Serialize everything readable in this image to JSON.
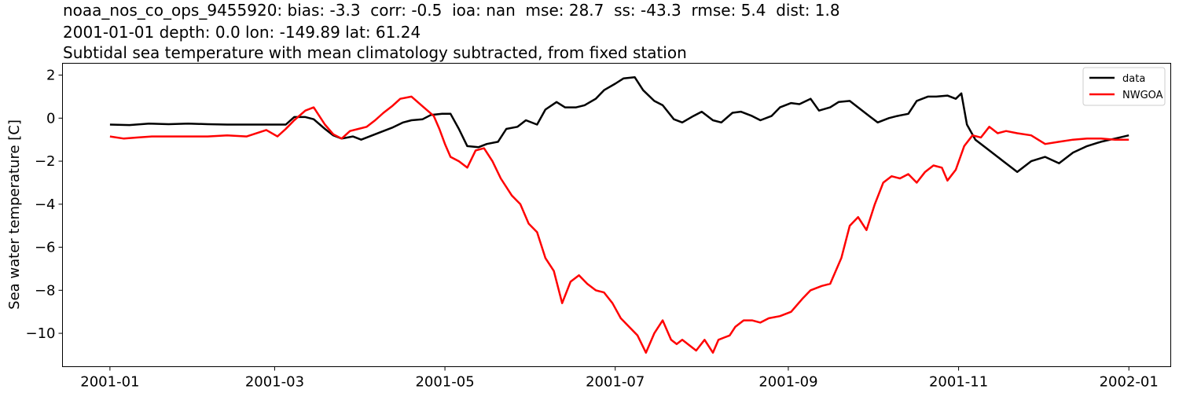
{
  "chart_data": {
    "type": "line",
    "title": [
      "noaa_nos_co_ops_9455920: bias: -3.3  corr: -0.5  ioa: nan  mse: 28.7  ss: -43.3  rmse: 5.4  dist: 1.8",
      "2001-01-01 depth: 0.0 lon: -149.89 lat: 61.24",
      "Subtidal sea temperature with mean climatology subtracted, from fixed station"
    ],
    "xlabel": "",
    "ylabel": "Sea water temperature [C]",
    "ylim": [
      -11.55,
      2.55
    ],
    "xlim_days": [
      -17,
      380
    ],
    "x_ticks": [
      {
        "label": "2001-01",
        "day": 0
      },
      {
        "label": "2001-03",
        "day": 59
      },
      {
        "label": "2001-05",
        "day": 120
      },
      {
        "label": "2001-07",
        "day": 181
      },
      {
        "label": "2001-09",
        "day": 243
      },
      {
        "label": "2001-11",
        "day": 304
      },
      {
        "label": "2002-01",
        "day": 365
      }
    ],
    "y_ticks": [
      {
        "label": "2",
        "value": 2
      },
      {
        "label": "0",
        "value": 0
      },
      {
        "label": "−2",
        "value": -2
      },
      {
        "label": "−4",
        "value": -4
      },
      {
        "label": "−6",
        "value": -6
      },
      {
        "label": "−8",
        "value": -8
      },
      {
        "label": "−10",
        "value": -10
      }
    ],
    "grid": false,
    "legend_position": "upper right",
    "series": [
      {
        "name": "data",
        "color": "#000000",
        "x_day": [
          0,
          7,
          14,
          21,
          28,
          35,
          42,
          49,
          56,
          63,
          66,
          70,
          73,
          77,
          80,
          83,
          87,
          90,
          94,
          98,
          101,
          105,
          108,
          112,
          115,
          119,
          122,
          125,
          128,
          132,
          135,
          139,
          142,
          146,
          149,
          153,
          156,
          160,
          163,
          167,
          170,
          174,
          177,
          181,
          184,
          188,
          191,
          195,
          198,
          202,
          205,
          209,
          212,
          216,
          219,
          223,
          226,
          230,
          233,
          237,
          240,
          244,
          247,
          251,
          254,
          258,
          261,
          265,
          268,
          272,
          275,
          279,
          282,
          286,
          289,
          293,
          296,
          300,
          303,
          305,
          307,
          310,
          313,
          316,
          320,
          325,
          330,
          335,
          340,
          345,
          350,
          355,
          360,
          365
        ],
        "values": [
          -0.3,
          -0.32,
          -0.25,
          -0.28,
          -0.25,
          -0.28,
          -0.3,
          -0.3,
          -0.3,
          -0.3,
          0.05,
          0.05,
          -0.05,
          -0.5,
          -0.8,
          -0.95,
          -0.85,
          -1.0,
          -0.8,
          -0.6,
          -0.45,
          -0.2,
          -0.1,
          -0.05,
          0.15,
          0.2,
          0.2,
          -0.5,
          -1.3,
          -1.35,
          -1.2,
          -1.1,
          -0.5,
          -0.4,
          -0.1,
          -0.3,
          0.4,
          0.75,
          0.5,
          0.5,
          0.6,
          0.9,
          1.3,
          1.6,
          1.85,
          1.9,
          1.3,
          0.8,
          0.6,
          -0.05,
          -0.2,
          0.1,
          0.3,
          -0.1,
          -0.2,
          0.25,
          0.3,
          0.1,
          -0.1,
          0.1,
          0.5,
          0.7,
          0.65,
          0.9,
          0.35,
          0.5,
          0.75,
          0.8,
          0.5,
          0.1,
          -0.2,
          0.0,
          0.1,
          0.2,
          0.8,
          1.0,
          1.0,
          1.05,
          0.9,
          1.15,
          -0.3,
          -1.0,
          -1.3,
          -1.6,
          -2.0,
          -2.5,
          -2.0,
          -1.8,
          -2.1,
          -1.6,
          -1.3,
          -1.1,
          -0.95,
          -0.8,
          -0.6,
          -0.4,
          -0.38,
          -0.4
        ]
      },
      {
        "name": "NWGOA",
        "color": "#ff0000",
        "x_day": [
          0,
          5,
          10,
          15,
          20,
          28,
          35,
          42,
          49,
          56,
          60,
          63,
          66,
          70,
          73,
          77,
          80,
          83,
          86,
          89,
          92,
          95,
          98,
          101,
          104,
          108,
          112,
          116,
          118,
          120,
          122,
          125,
          128,
          131,
          134,
          137,
          140,
          144,
          147,
          150,
          153,
          156,
          159,
          162,
          165,
          168,
          171,
          174,
          177,
          180,
          183,
          186,
          189,
          192,
          195,
          198,
          201,
          203,
          205,
          208,
          210,
          213,
          216,
          218,
          220,
          222,
          224,
          227,
          230,
          233,
          236,
          240,
          244,
          248,
          251,
          255,
          258,
          262,
          265,
          268,
          271,
          274,
          277,
          280,
          283,
          286,
          289,
          292,
          295,
          298,
          300,
          303,
          306,
          309,
          312,
          315,
          318,
          321,
          325,
          330,
          335,
          340,
          345,
          350,
          355,
          360,
          365
        ],
        "values": [
          -0.85,
          -0.95,
          -0.9,
          -0.85,
          -0.85,
          -0.85,
          -0.85,
          -0.8,
          -0.85,
          -0.55,
          -0.85,
          -0.5,
          -0.1,
          0.35,
          0.5,
          -0.3,
          -0.75,
          -0.95,
          -0.6,
          -0.5,
          -0.4,
          -0.1,
          0.25,
          0.55,
          0.9,
          1.0,
          0.55,
          0.1,
          -0.5,
          -1.2,
          -1.8,
          -2.0,
          -2.3,
          -1.5,
          -1.4,
          -2.0,
          -2.8,
          -3.6,
          -4.0,
          -4.9,
          -5.3,
          -6.5,
          -7.1,
          -8.6,
          -7.6,
          -7.3,
          -7.7,
          -8.0,
          -8.1,
          -8.6,
          -9.3,
          -9.7,
          -10.1,
          -10.9,
          -10.0,
          -9.4,
          -10.3,
          -10.5,
          -10.3,
          -10.6,
          -10.8,
          -10.3,
          -10.9,
          -10.3,
          -10.2,
          -10.1,
          -9.7,
          -9.4,
          -9.4,
          -9.5,
          -9.3,
          -9.2,
          -9.0,
          -8.4,
          -8.0,
          -7.8,
          -7.7,
          -6.5,
          -5.0,
          -4.6,
          -5.2,
          -4.0,
          -3.0,
          -2.7,
          -2.8,
          -2.6,
          -3.0,
          -2.5,
          -2.2,
          -2.3,
          -2.9,
          -2.4,
          -1.3,
          -0.8,
          -0.9,
          -0.4,
          -0.7,
          -0.6,
          -0.7,
          -0.8,
          -1.2,
          -1.1,
          -1.0,
          -0.95,
          -0.95,
          -1.0,
          -1.0
        ]
      }
    ]
  },
  "legend": {
    "items": [
      {
        "label": "data",
        "color": "#000000"
      },
      {
        "label": "NWGOA",
        "color": "#ff0000"
      }
    ]
  }
}
